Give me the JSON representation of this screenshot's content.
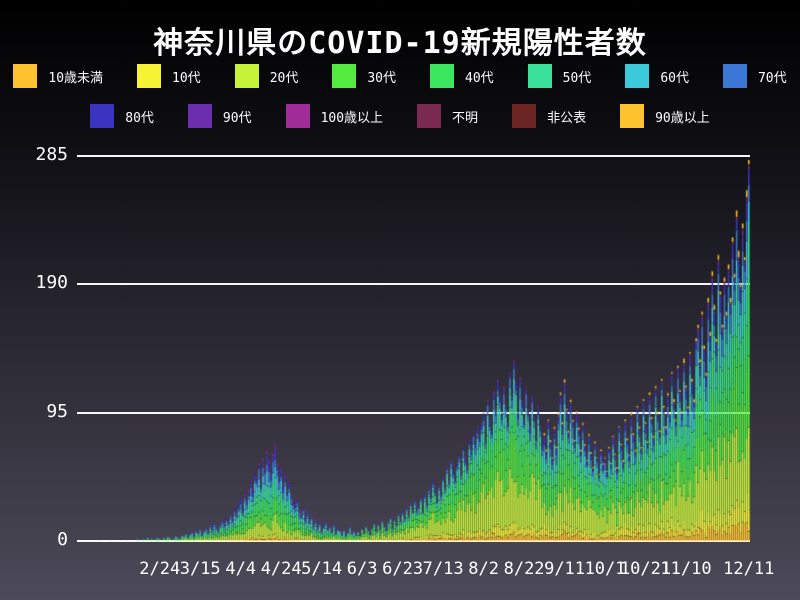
{
  "title": "神奈川県のCOVID-19新規陽性者数",
  "colors": {
    "background_top": "#000000",
    "background_bottom": "#4D4A59",
    "grid": "#FFFFFF",
    "text": "#FFFFFF"
  },
  "legend": {
    "rows": [
      [
        "10歳未満",
        "10代",
        "20代",
        "30代",
        "40代",
        "50代",
        "60代",
        "70代"
      ],
      [
        "80代",
        "90代",
        "100歳以上",
        "不明",
        "非公表",
        "90歳以上"
      ]
    ]
  },
  "chart_data": {
    "type": "bar",
    "stacked": true,
    "title": "神奈川県のCOVID-19新規陽性者数",
    "xlabel": "",
    "ylabel": "",
    "y_ticks": [
      0,
      95,
      190,
      285
    ],
    "ylim": [
      0,
      285
    ],
    "grid": "horizontal-white",
    "legend_position": "top",
    "x_tick_labels": [
      "2/24",
      "3/15",
      "4/4",
      "4/24",
      "5/14",
      "6/3",
      "6/23",
      "7/13",
      "8/2",
      "8/22",
      "9/11",
      "10/1",
      "10/21",
      "11/10",
      "12/11"
    ],
    "x_tick_indices": [
      39,
      59,
      79,
      99,
      119,
      139,
      159,
      179,
      199,
      219,
      239,
      259,
      279,
      299,
      330
    ],
    "series": [
      {
        "name": "10歳未満",
        "color": "#FDC22D"
      },
      {
        "name": "10代",
        "color": "#F6F335"
      },
      {
        "name": "20代",
        "color": "#C6F23A"
      },
      {
        "name": "30代",
        "color": "#54EB3F"
      },
      {
        "name": "40代",
        "color": "#3BE75E"
      },
      {
        "name": "50代",
        "color": "#3AE19B"
      },
      {
        "name": "60代",
        "color": "#3BC9DC"
      },
      {
        "name": "70代",
        "color": "#3B77D5"
      },
      {
        "name": "80代",
        "color": "#3A34C0"
      },
      {
        "name": "90代",
        "color": "#6A2EAE"
      },
      {
        "name": "100歳以上",
        "color": "#A02C97"
      },
      {
        "name": "不明",
        "color": "#7A2950"
      },
      {
        "name": "非公表",
        "color": "#6D2524"
      },
      {
        "name": "90歳以上",
        "color": "#FDC22D"
      }
    ],
    "age_share_periods": [
      {
        "through_index": 136,
        "shares": [
          0.03,
          0.04,
          0.16,
          0.14,
          0.15,
          0.15,
          0.11,
          0.1,
          0.07,
          0.03,
          0.005,
          0.01,
          0.005,
          0
        ]
      },
      {
        "through_index": 228,
        "shares": [
          0.04,
          0.06,
          0.3,
          0.2,
          0.14,
          0.1,
          0.06,
          0.05,
          0.03,
          0.01,
          0.002,
          0.005,
          0.003,
          0
        ]
      },
      {
        "through_index": 330,
        "shares": [
          0.045,
          0.06,
          0.225,
          0.16,
          0.15,
          0.13,
          0.09,
          0.065,
          0.04,
          0.013,
          0.002,
          0.003,
          0.002,
          0.015
        ]
      }
    ],
    "daily_totals": [
      1,
      0,
      0,
      0,
      0,
      0,
      0,
      0,
      0,
      1,
      0,
      0,
      0,
      0,
      0,
      1,
      0,
      0,
      0,
      1,
      0,
      0,
      0,
      1,
      0,
      0,
      1,
      0,
      2,
      1,
      0,
      2,
      1,
      3,
      1,
      2,
      1,
      2,
      3,
      2,
      1,
      3,
      2,
      4,
      3,
      1,
      2,
      4,
      3,
      2,
      5,
      4,
      6,
      3,
      5,
      7,
      4,
      8,
      6,
      9,
      5,
      8,
      10,
      7,
      12,
      9,
      14,
      11,
      8,
      13,
      16,
      12,
      18,
      15,
      20,
      17,
      25,
      21,
      28,
      32,
      24,
      35,
      30,
      38,
      45,
      40,
      52,
      48,
      58,
      44,
      62,
      55,
      68,
      60,
      50,
      65,
      72,
      58,
      48,
      55,
      42,
      50,
      38,
      45,
      35,
      30,
      28,
      32,
      24,
      20,
      26,
      18,
      22,
      15,
      19,
      12,
      16,
      10,
      14,
      8,
      12,
      15,
      9,
      11,
      7,
      13,
      6,
      10,
      8,
      5,
      9,
      4,
      7,
      11,
      6,
      8,
      5,
      7,
      4,
      9,
      6,
      11,
      8,
      5,
      10,
      13,
      7,
      12,
      9,
      15,
      11,
      8,
      14,
      18,
      10,
      16,
      12,
      20,
      15,
      22,
      17,
      25,
      19,
      28,
      22,
      30,
      24,
      26,
      32,
      22,
      35,
      28,
      40,
      33,
      45,
      38,
      30,
      42,
      36,
      48,
      40,
      55,
      45,
      60,
      52,
      46,
      58,
      65,
      50,
      70,
      62,
      55,
      75,
      68,
      80,
      72,
      85,
      78,
      88,
      95,
      76,
      105,
      90,
      82,
      112,
      98,
      120,
      108,
      95,
      115,
      102,
      88,
      125,
      110,
      134,
      118,
      96,
      122,
      105,
      90,
      115,
      98,
      85,
      108,
      92,
      78,
      100,
      86,
      72,
      80,
      68,
      90,
      75,
      62,
      85,
      70,
      95,
      110,
      88,
      120,
      98,
      82,
      105,
      90,
      75,
      96,
      84,
      68,
      88,
      72,
      60,
      80,
      66,
      55,
      74,
      62,
      50,
      68,
      58,
      62,
      52,
      70,
      58,
      78,
      65,
      55,
      85,
      72,
      60,
      90,
      76,
      64,
      95,
      80,
      68,
      100,
      85,
      70,
      105,
      88,
      74,
      110,
      92,
      78,
      115,
      96,
      82,
      120,
      100,
      85,
      110,
      95,
      125,
      105,
      90,
      130,
      112,
      96,
      135,
      115,
      100,
      140,
      120,
      105,
      150,
      160,
      135,
      170,
      145,
      125,
      180,
      155,
      200,
      175,
      150,
      212,
      185,
      160,
      195,
      170,
      205,
      180,
      225,
      198,
      245,
      215,
      190,
      235,
      210,
      260,
      282
    ]
  }
}
